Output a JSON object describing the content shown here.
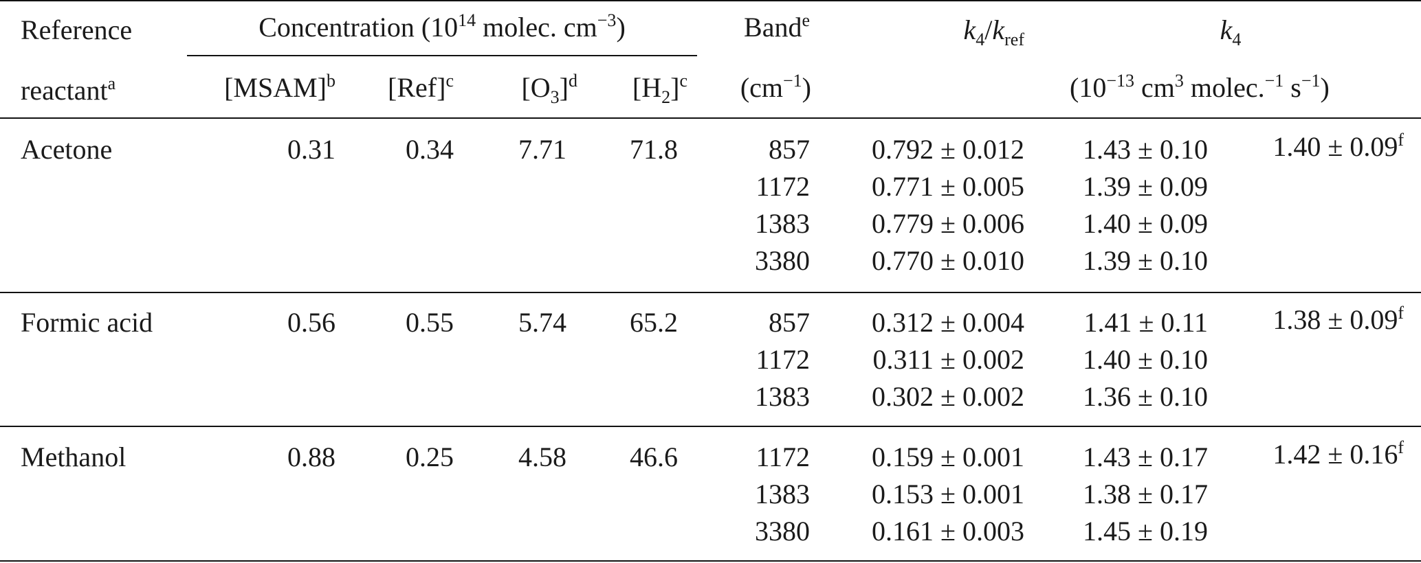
{
  "header": {
    "reference_line1": "Reference",
    "reference_line2": "reactant",
    "reference_sup": "a",
    "concentration": "Concentration (10",
    "concentration_exp": "14",
    "concentration_unit": " molec. cm",
    "concentration_unit_exp": "−3",
    "concentration_close": ")",
    "msam": "[MSAM]",
    "msam_sup": "b",
    "ref": "[Ref]",
    "ref_sup": "c",
    "o3_open": "[O",
    "o3_sub": "3",
    "o3_close": "]",
    "o3_sup": "d",
    "h2_open": "[H",
    "h2_sub": "2",
    "h2_close": "]",
    "h2_sup": "c",
    "band": "Band",
    "band_sup": "e",
    "band_unit": "(cm",
    "band_unit_exp": "−1",
    "band_unit_close": ")",
    "ratio_k": "k",
    "ratio_k_sub": "4",
    "ratio_slash": "/",
    "ratio_kref": "k",
    "ratio_kref_sub": "ref",
    "k4": "k",
    "k4_sub": "4",
    "k4_unit_a": "(10",
    "k4_unit_a_exp": "−13",
    "k4_unit_b": " cm",
    "k4_unit_b_exp": "3",
    "k4_unit_c": " molec.",
    "k4_unit_c_exp": "−1",
    "k4_unit_d": " s",
    "k4_unit_d_exp": "−1",
    "k4_unit_close": ")"
  },
  "groups": [
    {
      "reactant": "Acetone",
      "msam": "0.31",
      "ref": "0.34",
      "o3": "7.71",
      "h2": "71.8",
      "avg": "1.40 ± 0.09",
      "avg_sup": "f",
      "rows": [
        {
          "band": "857",
          "ratio": "0.792 ± 0.012",
          "k4": "1.43 ± 0.10"
        },
        {
          "band": "1172",
          "ratio": "0.771 ± 0.005",
          "k4": "1.39 ± 0.09"
        },
        {
          "band": "1383",
          "ratio": "0.779 ± 0.006",
          "k4": "1.40 ± 0.09"
        },
        {
          "band": "3380",
          "ratio": "0.770 ± 0.010",
          "k4": "1.39 ± 0.10"
        }
      ]
    },
    {
      "reactant": "Formic acid",
      "msam": "0.56",
      "ref": "0.55",
      "o3": "5.74",
      "h2": "65.2",
      "avg": "1.38 ± 0.09",
      "avg_sup": "f",
      "rows": [
        {
          "band": "857",
          "ratio": "0.312 ± 0.004",
          "k4": "1.41 ± 0.11"
        },
        {
          "band": "1172",
          "ratio": "0.311 ± 0.002",
          "k4": "1.40 ± 0.10"
        },
        {
          "band": "1383",
          "ratio": "0.302 ± 0.002",
          "k4": "1.36 ± 0.10"
        }
      ]
    },
    {
      "reactant": "Methanol",
      "msam": "0.88",
      "ref": "0.25",
      "o3": "4.58",
      "h2": "46.6",
      "avg": "1.42 ± 0.16",
      "avg_sup": "f",
      "rows": [
        {
          "band": "1172",
          "ratio": "0.159 ± 0.001",
          "k4": "1.43 ± 0.17"
        },
        {
          "band": "1383",
          "ratio": "0.153 ± 0.001",
          "k4": "1.38 ± 0.17"
        },
        {
          "band": "3380",
          "ratio": "0.161 ± 0.003",
          "k4": "1.45 ± 0.19"
        }
      ]
    }
  ]
}
